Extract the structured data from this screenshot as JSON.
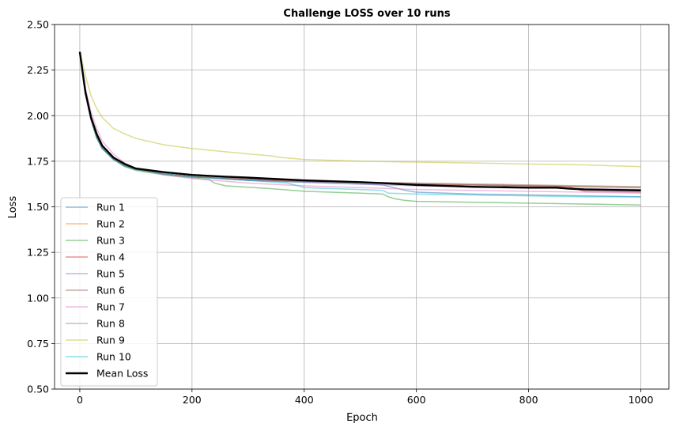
{
  "chart_data": {
    "type": "line",
    "title": "Challenge LOSS over 10 runs",
    "xlabel": "Epoch",
    "ylabel": "Loss",
    "xlim": [
      -45,
      1050
    ],
    "ylim": [
      0.5,
      2.5
    ],
    "xticks": [
      0,
      200,
      400,
      600,
      800,
      1000
    ],
    "xtick_labels": [
      "0",
      "200",
      "400",
      "600",
      "800",
      "1000"
    ],
    "yticks": [
      0.5,
      0.75,
      1.0,
      1.25,
      1.5,
      1.75,
      2.0,
      2.25,
      2.5
    ],
    "ytick_labels": [
      "0.50",
      "0.75",
      "1.00",
      "1.25",
      "1.50",
      "1.75",
      "2.00",
      "2.25",
      "2.50"
    ],
    "grid": true,
    "legend_position": "lower-left",
    "series": [
      {
        "name": "Run 1",
        "color": "#1f77b4",
        "x": [
          0,
          10,
          20,
          30,
          40,
          60,
          80,
          100,
          150,
          200,
          300,
          400,
          500,
          540,
          560,
          580,
          600,
          700,
          800,
          900,
          1000
        ],
        "values": [
          2.35,
          2.12,
          1.98,
          1.88,
          1.82,
          1.76,
          1.725,
          1.705,
          1.68,
          1.665,
          1.645,
          1.635,
          1.625,
          1.62,
          1.605,
          1.59,
          1.58,
          1.57,
          1.565,
          1.56,
          1.555
        ]
      },
      {
        "name": "Run 2",
        "color": "#ff7f0e",
        "x": [
          0,
          10,
          20,
          30,
          40,
          60,
          80,
          100,
          150,
          200,
          300,
          400,
          500,
          600,
          700,
          800,
          900,
          1000
        ],
        "values": [
          2.35,
          2.12,
          1.98,
          1.88,
          1.82,
          1.76,
          1.725,
          1.705,
          1.68,
          1.665,
          1.65,
          1.64,
          1.635,
          1.625,
          1.62,
          1.615,
          1.61,
          1.605
        ]
      },
      {
        "name": "Run 3",
        "color": "#2ca02c",
        "x": [
          0,
          10,
          20,
          30,
          40,
          60,
          80,
          100,
          150,
          200,
          230,
          240,
          260,
          340,
          380,
          400,
          500,
          540,
          550,
          560,
          580,
          600,
          700,
          800,
          900,
          1000
        ],
        "values": [
          2.35,
          2.12,
          1.98,
          1.88,
          1.82,
          1.76,
          1.72,
          1.7,
          1.675,
          1.66,
          1.65,
          1.63,
          1.615,
          1.6,
          1.59,
          1.585,
          1.575,
          1.57,
          1.555,
          1.545,
          1.535,
          1.53,
          1.525,
          1.52,
          1.515,
          1.51
        ]
      },
      {
        "name": "Run 4",
        "color": "#d62728",
        "x": [
          0,
          10,
          20,
          30,
          40,
          60,
          80,
          100,
          150,
          200,
          300,
          400,
          500,
          600,
          700,
          800,
          870,
          900,
          1000
        ],
        "values": [
          2.35,
          2.12,
          1.98,
          1.88,
          1.82,
          1.76,
          1.725,
          1.705,
          1.68,
          1.665,
          1.65,
          1.64,
          1.635,
          1.625,
          1.62,
          1.615,
          1.61,
          1.585,
          1.58
        ]
      },
      {
        "name": "Run 5",
        "color": "#9467bd",
        "x": [
          0,
          10,
          20,
          30,
          40,
          60,
          80,
          100,
          150,
          200,
          300,
          400,
          500,
          600,
          700,
          800,
          900,
          1000
        ],
        "values": [
          2.35,
          2.12,
          1.98,
          1.88,
          1.82,
          1.76,
          1.725,
          1.705,
          1.68,
          1.665,
          1.645,
          1.635,
          1.625,
          1.615,
          1.61,
          1.605,
          1.6,
          1.595
        ]
      },
      {
        "name": "Run 6",
        "color": "#8c564b",
        "x": [
          0,
          10,
          20,
          30,
          40,
          60,
          80,
          100,
          150,
          200,
          300,
          400,
          500,
          600,
          700,
          800,
          900,
          1000
        ],
        "values": [
          2.35,
          2.12,
          1.98,
          1.88,
          1.82,
          1.76,
          1.725,
          1.705,
          1.68,
          1.665,
          1.65,
          1.64,
          1.635,
          1.63,
          1.625,
          1.62,
          1.615,
          1.61
        ]
      },
      {
        "name": "Run 7",
        "color": "#e377c2",
        "x": [
          0,
          10,
          20,
          30,
          40,
          60,
          80,
          100,
          150,
          200,
          300,
          400,
          500,
          600,
          700,
          800,
          900,
          1000
        ],
        "values": [
          2.35,
          2.15,
          2.02,
          1.93,
          1.86,
          1.79,
          1.74,
          1.71,
          1.675,
          1.655,
          1.63,
          1.615,
          1.605,
          1.595,
          1.59,
          1.585,
          1.58,
          1.575
        ]
      },
      {
        "name": "Run 8",
        "color": "#7f7f7f",
        "x": [
          0,
          10,
          20,
          30,
          40,
          60,
          80,
          100,
          150,
          200,
          300,
          400,
          500,
          600,
          700,
          800,
          900,
          1000
        ],
        "values": [
          2.35,
          2.12,
          1.98,
          1.88,
          1.82,
          1.76,
          1.725,
          1.705,
          1.68,
          1.665,
          1.65,
          1.64,
          1.635,
          1.625,
          1.62,
          1.615,
          1.61,
          1.605
        ]
      },
      {
        "name": "Run 9",
        "color": "#bcbd22",
        "x": [
          0,
          10,
          20,
          30,
          40,
          60,
          80,
          100,
          150,
          200,
          300,
          340,
          360,
          400,
          500,
          600,
          700,
          800,
          900,
          1000
        ],
        "values": [
          2.35,
          2.22,
          2.11,
          2.04,
          1.99,
          1.93,
          1.9,
          1.875,
          1.84,
          1.82,
          1.79,
          1.78,
          1.77,
          1.76,
          1.75,
          1.745,
          1.74,
          1.735,
          1.73,
          1.72
        ]
      },
      {
        "name": "Run 10",
        "color": "#17becf",
        "x": [
          0,
          10,
          20,
          30,
          40,
          60,
          80,
          100,
          150,
          200,
          300,
          370,
          390,
          400,
          500,
          540,
          550,
          600,
          700,
          800,
          900,
          1000
        ],
        "values": [
          2.35,
          2.12,
          1.98,
          1.88,
          1.82,
          1.76,
          1.725,
          1.705,
          1.68,
          1.665,
          1.645,
          1.63,
          1.615,
          1.605,
          1.595,
          1.59,
          1.575,
          1.57,
          1.565,
          1.56,
          1.555,
          1.555
        ]
      },
      {
        "name": "Mean Loss",
        "color": "#000000",
        "x": [
          0,
          10,
          20,
          30,
          40,
          60,
          80,
          100,
          150,
          200,
          260,
          300,
          400,
          500,
          540,
          600,
          700,
          800,
          850,
          870,
          900,
          1000
        ],
        "values": [
          2.35,
          2.13,
          1.99,
          1.9,
          1.835,
          1.77,
          1.735,
          1.71,
          1.69,
          1.675,
          1.665,
          1.66,
          1.645,
          1.635,
          1.63,
          1.62,
          1.61,
          1.605,
          1.605,
          1.6,
          1.595,
          1.59
        ]
      }
    ]
  }
}
